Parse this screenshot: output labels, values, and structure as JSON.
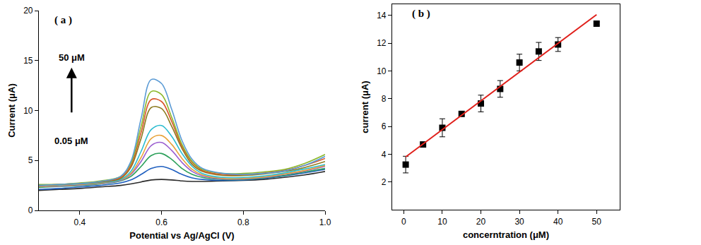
{
  "chart_data": [
    {
      "type": "line",
      "title": "( a )",
      "x_label": "Potential vs Ag/AgCl (V)",
      "y_label": "Current (μA)",
      "annotations": [
        "50 μM",
        "0.05 μM"
      ],
      "x": [
        0.3,
        0.35,
        0.4,
        0.45,
        0.5,
        0.525,
        0.55,
        0.575,
        0.6,
        0.625,
        0.65,
        0.675,
        0.7,
        0.75,
        0.8,
        0.85,
        0.9,
        0.95,
        1.0
      ],
      "series": [
        {
          "color": "#2b2b2b",
          "values": [
            2.0,
            2.1,
            2.2,
            2.35,
            2.5,
            2.65,
            2.85,
            3.05,
            3.1,
            3.05,
            2.95,
            2.9,
            2.9,
            2.95,
            3.0,
            3.1,
            3.3,
            3.55,
            3.9
          ]
        },
        {
          "color": "#1f5fbf",
          "values": [
            2.1,
            2.2,
            2.35,
            2.5,
            2.75,
            3.05,
            3.6,
            4.2,
            4.4,
            4.1,
            3.6,
            3.25,
            3.1,
            3.0,
            3.05,
            3.2,
            3.45,
            3.75,
            4.1
          ]
        },
        {
          "color": "#2ca05a",
          "values": [
            2.3,
            2.4,
            2.5,
            2.65,
            2.95,
            3.4,
            4.4,
            5.5,
            5.7,
            5.1,
            4.2,
            3.6,
            3.3,
            3.1,
            3.1,
            3.25,
            3.5,
            3.85,
            4.2
          ]
        },
        {
          "color": "#9b5fd0",
          "values": [
            2.4,
            2.45,
            2.55,
            2.7,
            3.0,
            3.6,
            4.9,
            6.5,
            6.8,
            6.0,
            4.8,
            3.9,
            3.45,
            3.15,
            3.15,
            3.3,
            3.6,
            3.95,
            4.4
          ]
        },
        {
          "color": "#e8a33a",
          "values": [
            2.4,
            2.5,
            2.6,
            2.75,
            3.05,
            3.7,
            5.3,
            7.2,
            7.5,
            6.6,
            5.2,
            4.1,
            3.55,
            3.2,
            3.2,
            3.35,
            3.65,
            4.0,
            4.5
          ]
        },
        {
          "color": "#2bbcd0",
          "values": [
            2.5,
            2.55,
            2.65,
            2.8,
            3.1,
            3.9,
            5.9,
            8.1,
            8.5,
            7.4,
            5.7,
            4.4,
            3.7,
            3.3,
            3.3,
            3.45,
            3.75,
            4.15,
            4.6
          ]
        },
        {
          "color": "#8b7a1e",
          "values": [
            2.5,
            2.6,
            2.7,
            2.85,
            3.2,
            4.3,
            7.2,
            10.3,
            10.2,
            8.4,
            6.2,
            4.6,
            3.9,
            3.5,
            3.5,
            3.65,
            3.9,
            4.3,
            4.9
          ]
        },
        {
          "color": "#d9542a",
          "values": [
            2.5,
            2.6,
            2.7,
            2.9,
            3.3,
            4.5,
            7.8,
            11.1,
            10.9,
            8.9,
            6.4,
            4.8,
            4.0,
            3.6,
            3.6,
            3.75,
            4.0,
            4.5,
            5.2
          ]
        },
        {
          "color": "#8cb82c",
          "values": [
            2.6,
            2.6,
            2.75,
            2.95,
            3.4,
            4.7,
            8.4,
            11.9,
            11.6,
            9.3,
            6.6,
            4.9,
            4.1,
            3.7,
            3.7,
            3.85,
            4.1,
            4.7,
            5.6
          ]
        },
        {
          "color": "#5b9bd5",
          "values": [
            2.5,
            2.6,
            2.7,
            2.9,
            3.4,
            4.9,
            9.2,
            13.1,
            12.7,
            10.1,
            7.0,
            5.1,
            4.2,
            3.7,
            3.6,
            3.7,
            3.95,
            4.5,
            5.4
          ]
        }
      ],
      "xlim": [
        0.3,
        1.0
      ],
      "xticks": [
        0.4,
        0.6,
        0.8,
        {
          "value": 1.0,
          "label": "1.0"
        }
      ],
      "ylim": [
        0,
        20
      ],
      "yticks": [
        0,
        5,
        10,
        15,
        20
      ],
      "grid": false
    },
    {
      "type": "scatter",
      "title": "( b )",
      "x_label": "concerntration (μM)",
      "y_label": "current (μA)",
      "series": [
        {
          "type": "scatter",
          "marker": "square",
          "color": "#000000",
          "x": [
            0.5,
            5,
            10,
            15,
            20,
            25,
            30,
            35,
            40,
            50
          ],
          "values": [
            3.25,
            4.7,
            5.9,
            6.9,
            7.65,
            8.7,
            10.6,
            11.4,
            11.9,
            13.4
          ],
          "error": [
            0.6,
            0.1,
            0.65,
            0.1,
            0.6,
            0.6,
            0.6,
            0.65,
            0.5,
            0.1
          ]
        },
        {
          "type": "line",
          "color": "#e0201b",
          "x": [
            0.5,
            50
          ],
          "values": [
            3.8,
            14.05
          ]
        }
      ],
      "xlim": [
        -3,
        56
      ],
      "xticks": [
        0,
        10,
        20,
        30,
        40,
        50
      ],
      "ylim": [
        0,
        14.8
      ],
      "yticks": [
        2,
        4,
        6,
        8,
        10,
        12,
        14
      ],
      "grid": false
    }
  ]
}
